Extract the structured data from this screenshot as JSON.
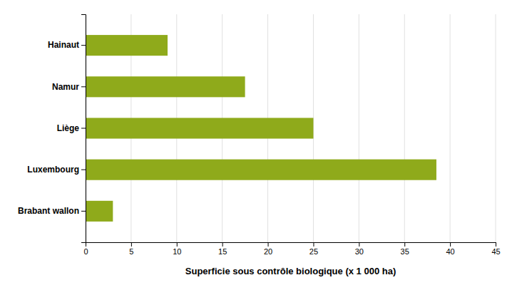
{
  "chart_data": {
    "type": "bar",
    "orientation": "horizontal",
    "categories": [
      "Hainaut",
      "Namur",
      "Liège",
      "Luxembourg",
      "Brabant wallon"
    ],
    "values": [
      9.0,
      17.5,
      25.0,
      38.5,
      3.0
    ],
    "color": "#8faa1b",
    "xlabel": "Superficie sous contrôle biologique (x 1 000 ha)",
    "xlim": [
      0,
      45
    ],
    "xticks": [
      0,
      5,
      10,
      15,
      20,
      25,
      30,
      35,
      40,
      45
    ],
    "grid": true
  }
}
